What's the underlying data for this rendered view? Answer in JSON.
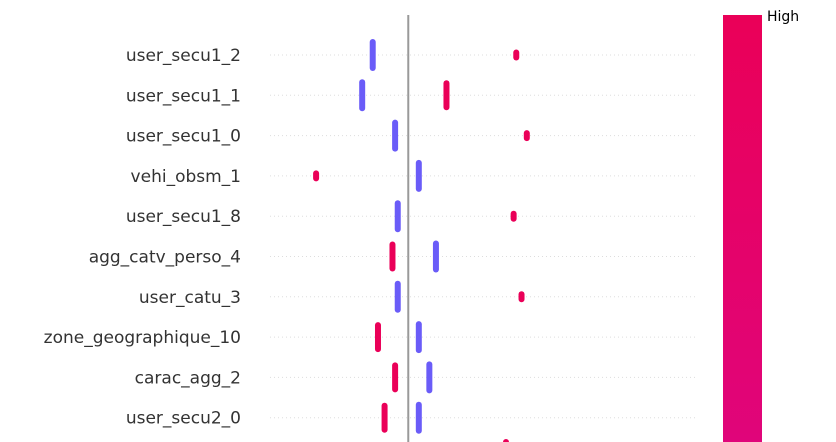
{
  "chart_data": {
    "type": "scatter",
    "title": "",
    "xlabel": "",
    "ylabel": "",
    "xlim": [
      -1.05,
      2.2
    ],
    "zero_line": 0,
    "grid": false,
    "colors": {
      "high": "#ea0058",
      "low": "#6a5cf8",
      "zero_line": "#999999",
      "row_guide": "#dddddd"
    },
    "colorbar": {
      "label_high": "High"
    },
    "features": [
      {
        "name": "user_secu1_2",
        "points": [
          {
            "x": -0.27,
            "v": "low"
          },
          {
            "x": 0.82,
            "v": "high"
          }
        ]
      },
      {
        "name": "user_secu1_1",
        "points": [
          {
            "x": -0.35,
            "v": "low"
          },
          {
            "x": 0.29,
            "v": "high"
          }
        ]
      },
      {
        "name": "user_secu1_0",
        "points": [
          {
            "x": -0.1,
            "v": "low"
          },
          {
            "x": 0.9,
            "v": "high"
          }
        ]
      },
      {
        "name": "vehi_obsm_1",
        "points": [
          {
            "x": -0.7,
            "v": "high"
          },
          {
            "x": 0.08,
            "v": "low"
          }
        ]
      },
      {
        "name": "user_secu1_8",
        "points": [
          {
            "x": -0.08,
            "v": "low"
          },
          {
            "x": 0.8,
            "v": "high"
          }
        ]
      },
      {
        "name": "agg_catv_perso_4",
        "points": [
          {
            "x": -0.12,
            "v": "high"
          },
          {
            "x": 0.21,
            "v": "low"
          }
        ]
      },
      {
        "name": "user_catu_3",
        "points": [
          {
            "x": -0.08,
            "v": "low"
          },
          {
            "x": 0.86,
            "v": "high"
          }
        ]
      },
      {
        "name": "zone_geographique_10",
        "points": [
          {
            "x": -0.23,
            "v": "high"
          },
          {
            "x": 0.08,
            "v": "low"
          }
        ]
      },
      {
        "name": "carac_agg_2",
        "points": [
          {
            "x": -0.1,
            "v": "high"
          },
          {
            "x": 0.16,
            "v": "low"
          }
        ]
      },
      {
        "name": "user_secu2_0",
        "points": [
          {
            "x": -0.18,
            "v": "high"
          },
          {
            "x": 0.08,
            "v": "low"
          }
        ]
      }
    ]
  }
}
